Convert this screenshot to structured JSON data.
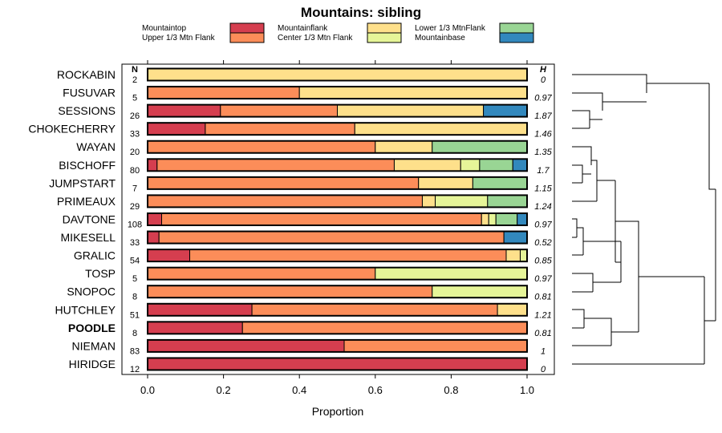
{
  "chart_data": {
    "type": "bar",
    "orientation": "horizontal-stacked",
    "title": "Mountains: sibling",
    "xlabel": "Proportion",
    "xlim": [
      0,
      1
    ],
    "xticks": [
      "0.0",
      "0.2",
      "0.4",
      "0.6",
      "0.8",
      "1.0"
    ],
    "n_header": "N",
    "h_header": "H",
    "legend": [
      {
        "name": "Mountaintop",
        "color": "#d53e4f"
      },
      {
        "name": "Upper 1/3 Mtn Flank",
        "color": "#fc8d59"
      },
      {
        "name": "Mountainflank",
        "color": "#fee08b"
      },
      {
        "name": "Center 1/3 Mtn Flank",
        "color": "#e6f598"
      },
      {
        "name": "Lower 1/3 MtnFlank",
        "color": "#99d594"
      },
      {
        "name": "Mountainbase",
        "color": "#3288bd"
      }
    ],
    "rows": [
      {
        "label": "ROCKABIN",
        "bold": false,
        "n": "2",
        "h": "0",
        "values": [
          0,
          0,
          1.0,
          0,
          0,
          0
        ]
      },
      {
        "label": "FUSUVAR",
        "bold": false,
        "n": "5",
        "h": "0.97",
        "values": [
          0,
          0.4,
          0.6,
          0,
          0,
          0
        ]
      },
      {
        "label": "SESSIONS",
        "bold": false,
        "n": "26",
        "h": "1.87",
        "values": [
          0.192,
          0.308,
          0.385,
          0,
          0,
          0.115
        ]
      },
      {
        "label": "CHOKECHERRY",
        "bold": false,
        "n": "33",
        "h": "1.46",
        "values": [
          0.152,
          0.394,
          0.454,
          0,
          0,
          0
        ]
      },
      {
        "label": "WAYAN",
        "bold": false,
        "n": "20",
        "h": "1.35",
        "values": [
          0,
          0.6,
          0.15,
          0,
          0.25,
          0
        ]
      },
      {
        "label": "BISCHOFF",
        "bold": false,
        "n": "80",
        "h": "1.7",
        "values": [
          0.025,
          0.625,
          0.175,
          0.05,
          0.0875,
          0.0375
        ]
      },
      {
        "label": "JUMPSTART",
        "bold": false,
        "n": "7",
        "h": "1.15",
        "values": [
          0,
          0.714,
          0.143,
          0,
          0.143,
          0
        ]
      },
      {
        "label": "PRIMEAUX",
        "bold": false,
        "n": "29",
        "h": "1.24",
        "values": [
          0,
          0.724,
          0.034,
          0.138,
          0.104,
          0
        ]
      },
      {
        "label": "DAVTONE",
        "bold": false,
        "n": "108",
        "h": "0.97",
        "values": [
          0.037,
          0.843,
          0.019,
          0.019,
          0.056,
          0.026
        ]
      },
      {
        "label": "MIKESELL",
        "bold": false,
        "n": "33",
        "h": "0.52",
        "values": [
          0.03,
          0.909,
          0,
          0,
          0,
          0.061
        ]
      },
      {
        "label": "GRALIC",
        "bold": false,
        "n": "54",
        "h": "0.85",
        "values": [
          0.111,
          0.834,
          0.037,
          0.018,
          0,
          0
        ]
      },
      {
        "label": "TOSP",
        "bold": false,
        "n": "5",
        "h": "0.97",
        "values": [
          0,
          0.6,
          0,
          0.4,
          0,
          0
        ]
      },
      {
        "label": "SNOPOC",
        "bold": false,
        "n": "8",
        "h": "0.81",
        "values": [
          0,
          0.75,
          0,
          0.25,
          0,
          0
        ]
      },
      {
        "label": "HUTCHLEY",
        "bold": false,
        "n": "51",
        "h": "1.21",
        "values": [
          0.275,
          0.647,
          0.078,
          0,
          0,
          0
        ]
      },
      {
        "label": "POODLE",
        "bold": true,
        "n": "8",
        "h": "0.81",
        "values": [
          0.25,
          0.75,
          0,
          0,
          0,
          0
        ]
      },
      {
        "label": "NIEMAN",
        "bold": false,
        "n": "83",
        "h": "1",
        "values": [
          0.518,
          0.482,
          0,
          0,
          0,
          0
        ]
      },
      {
        "label": "HIRIDGE",
        "bold": false,
        "n": "12",
        "h": "0",
        "values": [
          1.0,
          0,
          0,
          0,
          0,
          0
        ]
      }
    ]
  }
}
